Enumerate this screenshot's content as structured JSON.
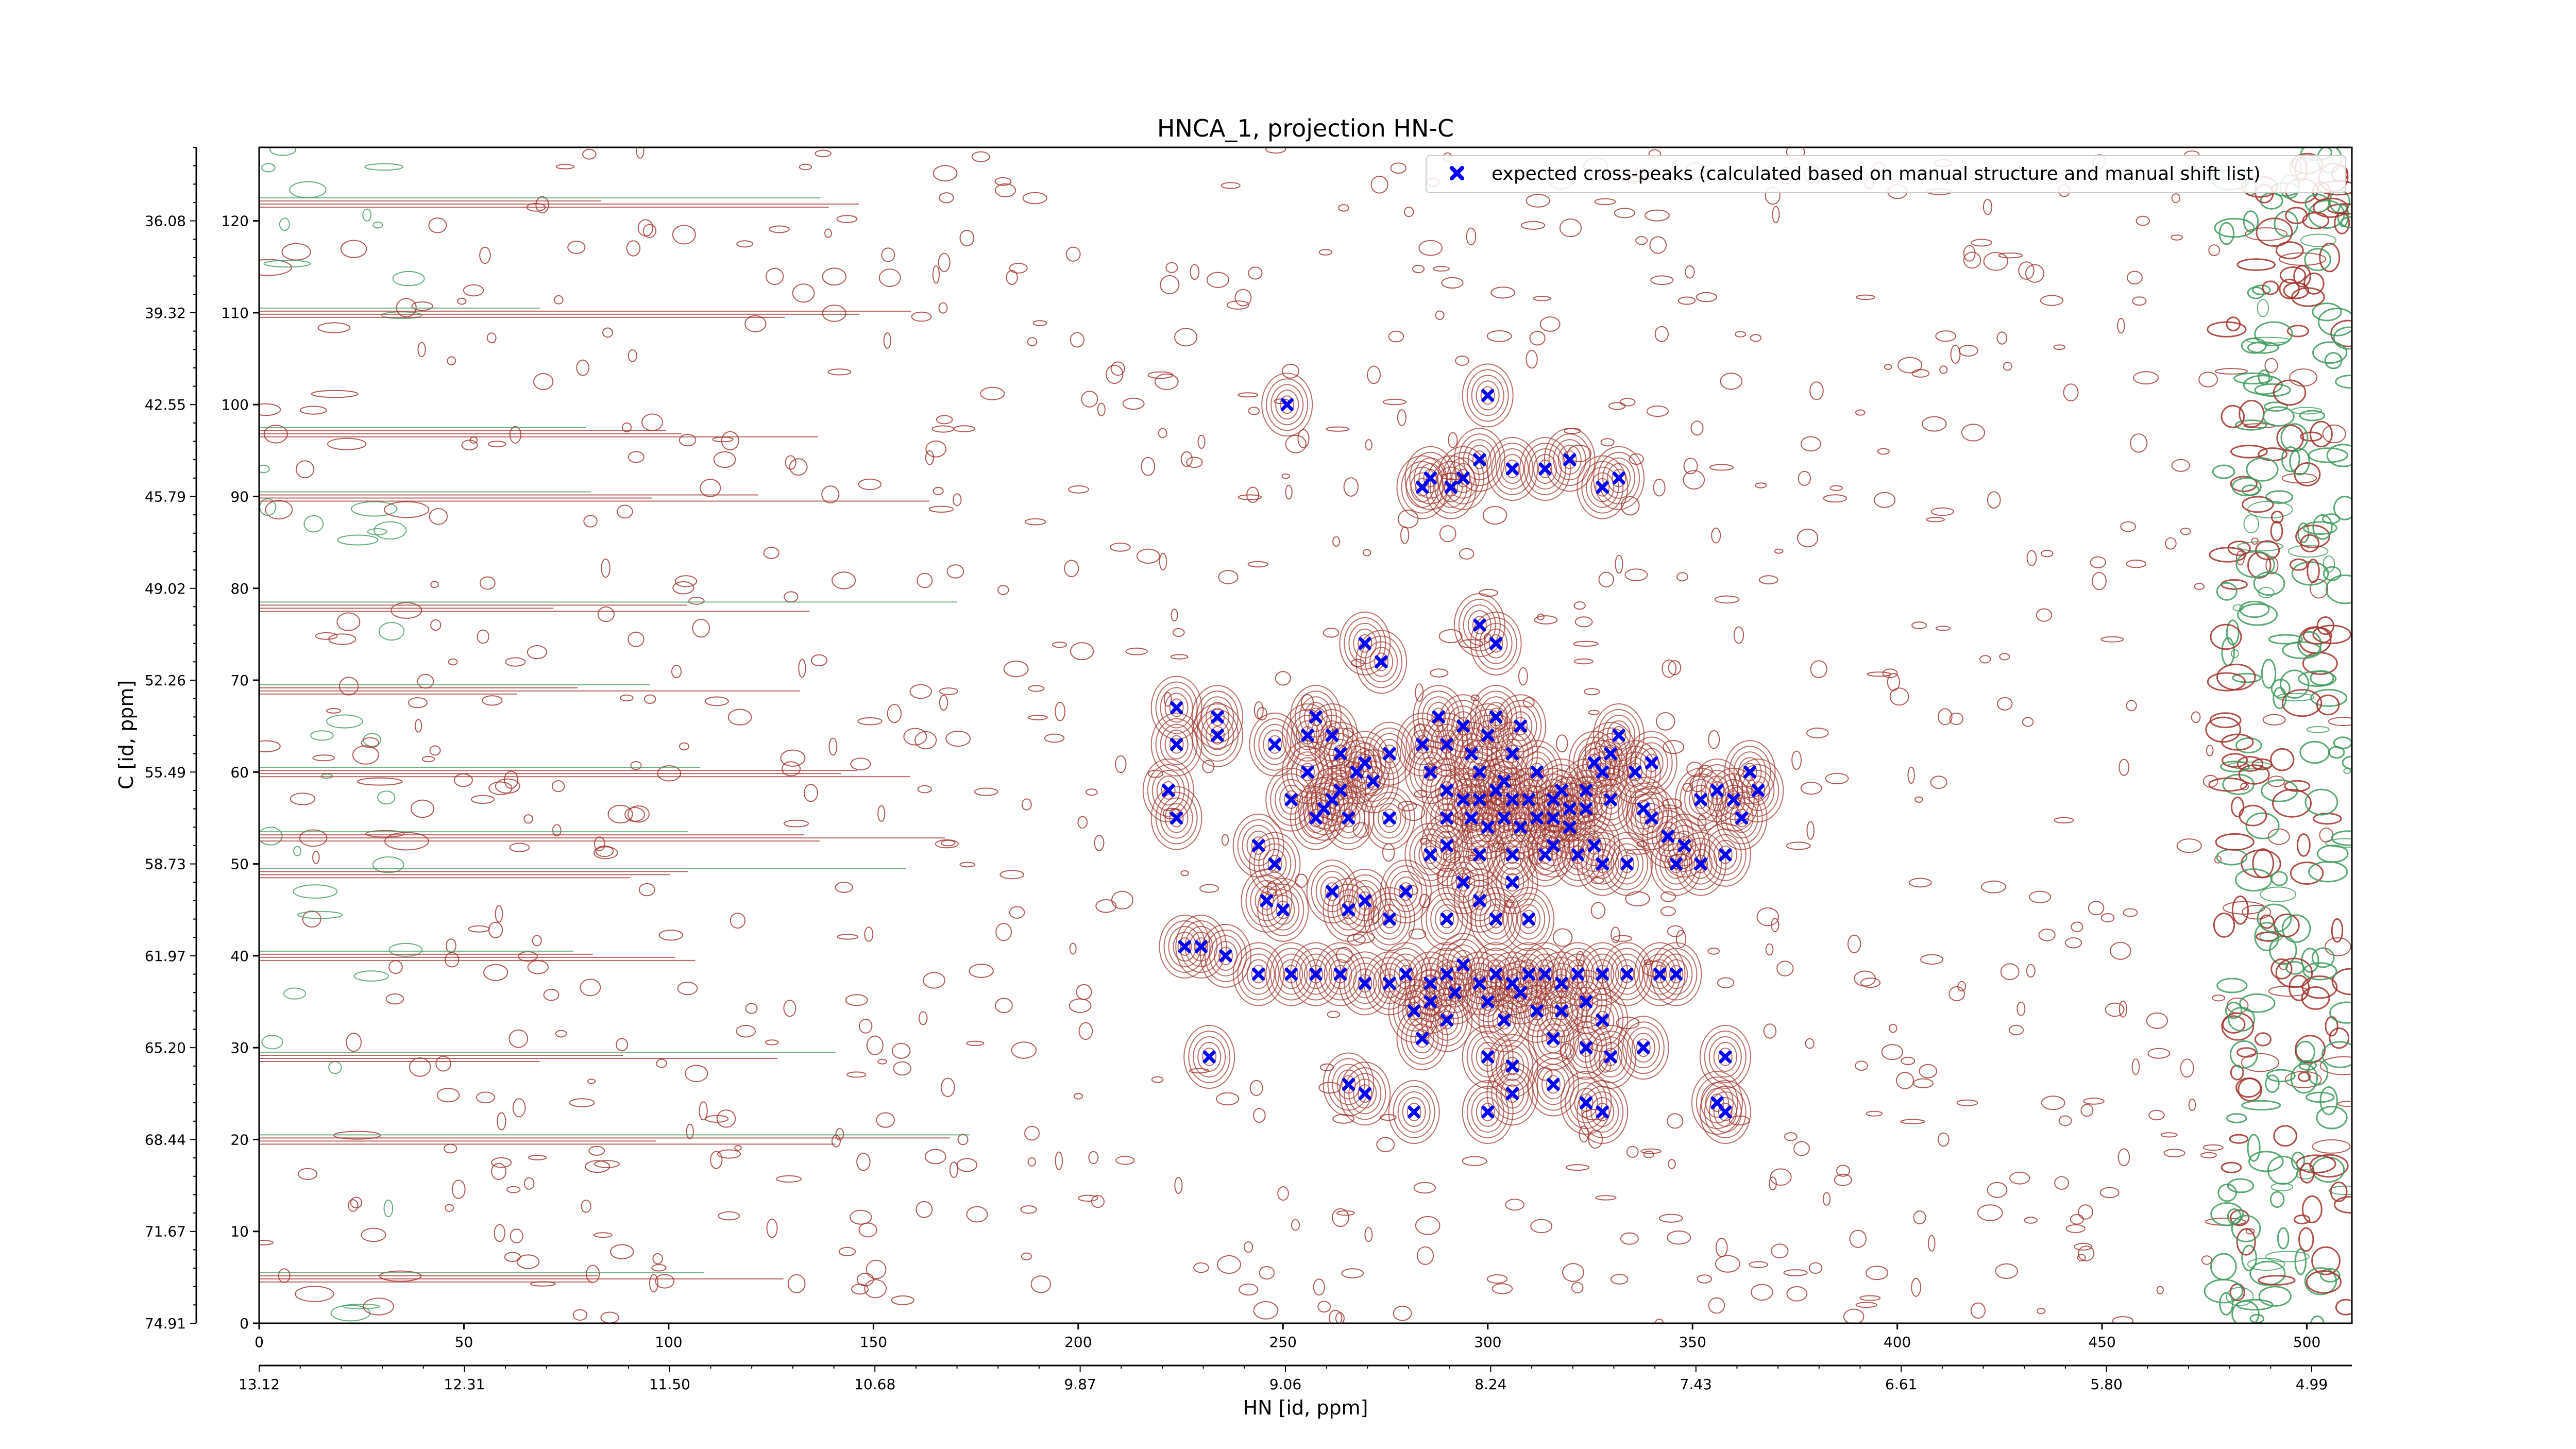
{
  "chart_data": {
    "type": "scatter",
    "title": "HNCA_1, projection HN-C",
    "xlabel": "HN [id, ppm]",
    "ylabel": "C [id, ppm]",
    "xlim": [
      0,
      511
    ],
    "ylim": [
      0,
      128
    ],
    "grid": false,
    "legend": {
      "placement": "top-right",
      "label": "expected cross-peaks (calculated based on manual structure and manual shift list)"
    },
    "colors": {
      "peaks": "#0000ff",
      "contour_positive": "#a0302a",
      "contour_negative": "#3d9a5c"
    },
    "x_index_ticks": [
      "0",
      "50",
      "100",
      "150",
      "200",
      "250",
      "300",
      "350",
      "400",
      "450",
      "500"
    ],
    "x_index_values": [
      0,
      50,
      100,
      150,
      200,
      250,
      300,
      350,
      400,
      450,
      500
    ],
    "x_ppm_ticks": [
      "13.12",
      "12.31",
      "11.50",
      "10.68",
      "9.87",
      "9.06",
      "8.24",
      "7.43",
      "6.61",
      "5.80",
      "4.99"
    ],
    "y_index_ticks": [
      "0",
      "10",
      "20",
      "30",
      "40",
      "50",
      "60",
      "70",
      "80",
      "90",
      "100",
      "110",
      "120"
    ],
    "y_index_values": [
      0,
      10,
      20,
      30,
      40,
      50,
      60,
      70,
      80,
      90,
      100,
      110,
      120
    ],
    "y_ppm_ticks": [
      "74.91",
      "71.67",
      "68.44",
      "65.20",
      "61.97",
      "58.73",
      "55.49",
      "52.26",
      "49.02",
      "45.79",
      "42.55",
      "39.32",
      "36.08"
    ],
    "y_ppm_positions": [
      0,
      10,
      20,
      30,
      40,
      50,
      60,
      70,
      80,
      90,
      100,
      110,
      120
    ],
    "series": [
      {
        "name": "expected cross-peaks (calculated based on manual structure and manual shift list)",
        "points": [
          [
            251,
            100
          ],
          [
            300,
            101
          ],
          [
            286,
            92
          ],
          [
            294,
            92
          ],
          [
            298,
            94
          ],
          [
            306,
            93
          ],
          [
            314,
            93
          ],
          [
            320,
            94
          ],
          [
            328,
            91
          ],
          [
            332,
            92
          ],
          [
            284,
            91
          ],
          [
            291,
            91
          ],
          [
            298,
            76
          ],
          [
            302,
            74
          ],
          [
            270,
            74
          ],
          [
            274,
            72
          ],
          [
            224,
            67
          ],
          [
            224,
            63
          ],
          [
            234,
            64
          ],
          [
            234,
            66
          ],
          [
            248,
            63
          ],
          [
            256,
            64
          ],
          [
            258,
            66
          ],
          [
            262,
            64
          ],
          [
            264,
            62
          ],
          [
            268,
            60
          ],
          [
            262,
            57
          ],
          [
            258,
            55
          ],
          [
            252,
            57
          ],
          [
            256,
            60
          ],
          [
            270,
            61
          ],
          [
            276,
            62
          ],
          [
            272,
            59
          ],
          [
            264,
            58
          ],
          [
            260,
            56
          ],
          [
            266,
            55
          ],
          [
            276,
            55
          ],
          [
            284,
            63
          ],
          [
            288,
            66
          ],
          [
            290,
            63
          ],
          [
            294,
            65
          ],
          [
            296,
            62
          ],
          [
            298,
            60
          ],
          [
            300,
            64
          ],
          [
            302,
            66
          ],
          [
            306,
            62
          ],
          [
            308,
            65
          ],
          [
            286,
            60
          ],
          [
            290,
            58
          ],
          [
            294,
            57
          ],
          [
            298,
            57
          ],
          [
            302,
            58
          ],
          [
            304,
            59
          ],
          [
            306,
            57
          ],
          [
            310,
            57
          ],
          [
            312,
            60
          ],
          [
            316,
            57
          ],
          [
            318,
            58
          ],
          [
            320,
            56
          ],
          [
            324,
            58
          ],
          [
            326,
            61
          ],
          [
            330,
            62
          ],
          [
            332,
            64
          ],
          [
            290,
            55
          ],
          [
            296,
            55
          ],
          [
            300,
            54
          ],
          [
            304,
            55
          ],
          [
            308,
            54
          ],
          [
            312,
            55
          ],
          [
            316,
            55
          ],
          [
            320,
            54
          ],
          [
            324,
            56
          ],
          [
            328,
            60
          ],
          [
            336,
            60
          ],
          [
            338,
            56
          ],
          [
            340,
            55
          ],
          [
            344,
            53
          ],
          [
            348,
            52
          ],
          [
            352,
            57
          ],
          [
            356,
            58
          ],
          [
            360,
            57
          ],
          [
            364,
            60
          ],
          [
            366,
            58
          ],
          [
            340,
            61
          ],
          [
            330,
            57
          ],
          [
            326,
            52
          ],
          [
            222,
            58
          ],
          [
            224,
            55
          ],
          [
            244,
            52
          ],
          [
            248,
            50
          ],
          [
            286,
            51
          ],
          [
            290,
            52
          ],
          [
            298,
            51
          ],
          [
            306,
            51
          ],
          [
            314,
            51
          ],
          [
            316,
            52
          ],
          [
            322,
            51
          ],
          [
            328,
            50
          ],
          [
            334,
            50
          ],
          [
            346,
            50
          ],
          [
            352,
            50
          ],
          [
            358,
            51
          ],
          [
            362,
            55
          ],
          [
            246,
            46
          ],
          [
            250,
            45
          ],
          [
            262,
            47
          ],
          [
            266,
            45
          ],
          [
            270,
            46
          ],
          [
            276,
            44
          ],
          [
            280,
            47
          ],
          [
            290,
            44
          ],
          [
            294,
            48
          ],
          [
            298,
            46
          ],
          [
            302,
            44
          ],
          [
            306,
            48
          ],
          [
            310,
            44
          ],
          [
            226,
            41
          ],
          [
            230,
            41
          ],
          [
            236,
            40
          ],
          [
            244,
            38
          ],
          [
            252,
            38
          ],
          [
            258,
            38
          ],
          [
            264,
            38
          ],
          [
            270,
            37
          ],
          [
            276,
            37
          ],
          [
            280,
            38
          ],
          [
            286,
            37
          ],
          [
            290,
            38
          ],
          [
            294,
            39
          ],
          [
            298,
            37
          ],
          [
            302,
            38
          ],
          [
            306,
            37
          ],
          [
            310,
            38
          ],
          [
            314,
            38
          ],
          [
            318,
            37
          ],
          [
            322,
            38
          ],
          [
            328,
            38
          ],
          [
            334,
            38
          ],
          [
            342,
            38
          ],
          [
            346,
            38
          ],
          [
            282,
            34
          ],
          [
            286,
            35
          ],
          [
            290,
            33
          ],
          [
            292,
            36
          ],
          [
            300,
            35
          ],
          [
            304,
            33
          ],
          [
            308,
            36
          ],
          [
            312,
            34
          ],
          [
            318,
            34
          ],
          [
            324,
            35
          ],
          [
            328,
            33
          ],
          [
            232,
            29
          ],
          [
            284,
            31
          ],
          [
            300,
            29
          ],
          [
            306,
            28
          ],
          [
            316,
            31
          ],
          [
            324,
            30
          ],
          [
            330,
            29
          ],
          [
            338,
            30
          ],
          [
            358,
            29
          ],
          [
            266,
            26
          ],
          [
            270,
            25
          ],
          [
            282,
            23
          ],
          [
            300,
            23
          ],
          [
            306,
            25
          ],
          [
            316,
            26
          ],
          [
            324,
            24
          ],
          [
            328,
            23
          ],
          [
            356,
            24
          ],
          [
            358,
            23
          ]
        ]
      }
    ]
  }
}
